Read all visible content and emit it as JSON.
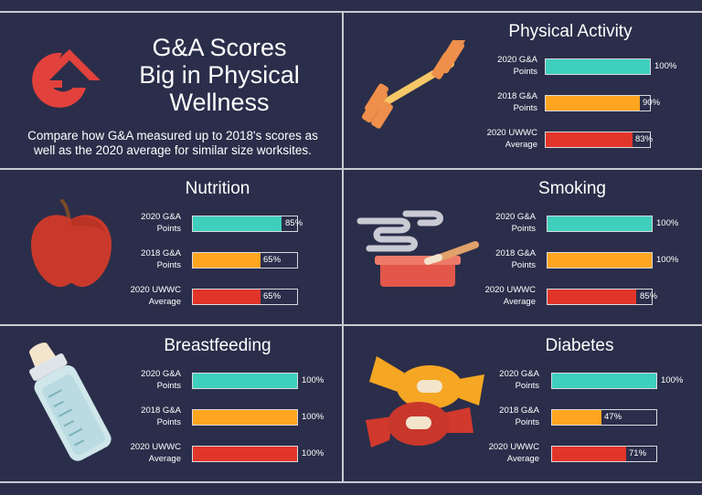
{
  "hero": {
    "title_lines": [
      "G&A Scores",
      "Big in Physical",
      "Wellness"
    ],
    "subtitle_lines": [
      "Compare how G&A measured up to 2018's scores as",
      "well as the 2020 average for similar size worksites."
    ]
  },
  "colors": {
    "background": "#2b2e4a",
    "teal": "#3ecfbd",
    "orange": "#ffa51f",
    "red": "#e2352a",
    "logo_red": "#e2413c",
    "track_border": "#d9d9de"
  },
  "row_labels": {
    "ga2020": [
      "2020 G&A",
      "Points"
    ],
    "ga2018": [
      "2018 G&A",
      "Points"
    ],
    "uwwc": [
      "2020 UWWC",
      "Average"
    ]
  },
  "panels": {
    "physical_activity": {
      "title": "Physical Activity",
      "icon": "dumbbell-icon",
      "values": [
        100,
        90,
        83
      ],
      "labels": [
        "100%",
        "90%",
        "83%"
      ]
    },
    "nutrition": {
      "title": "Nutrition",
      "icon": "apple-icon",
      "values": [
        85,
        65,
        65
      ],
      "labels": [
        "85%",
        "65%",
        "65%"
      ]
    },
    "smoking": {
      "title": "Smoking",
      "icon": "ashtray-icon",
      "values": [
        100,
        100,
        85
      ],
      "labels": [
        "100%",
        "100%",
        "85%"
      ]
    },
    "breastfeeding": {
      "title": "Breastfeeding",
      "icon": "baby-bottle-icon",
      "values": [
        100,
        100,
        100
      ],
      "labels": [
        "100%",
        "100%",
        "100%"
      ]
    },
    "diabetes": {
      "title": "Diabetes",
      "icon": "candy-icon",
      "values": [
        100,
        47,
        71
      ],
      "labels": [
        "100%",
        "47%",
        "71%"
      ]
    }
  }
}
